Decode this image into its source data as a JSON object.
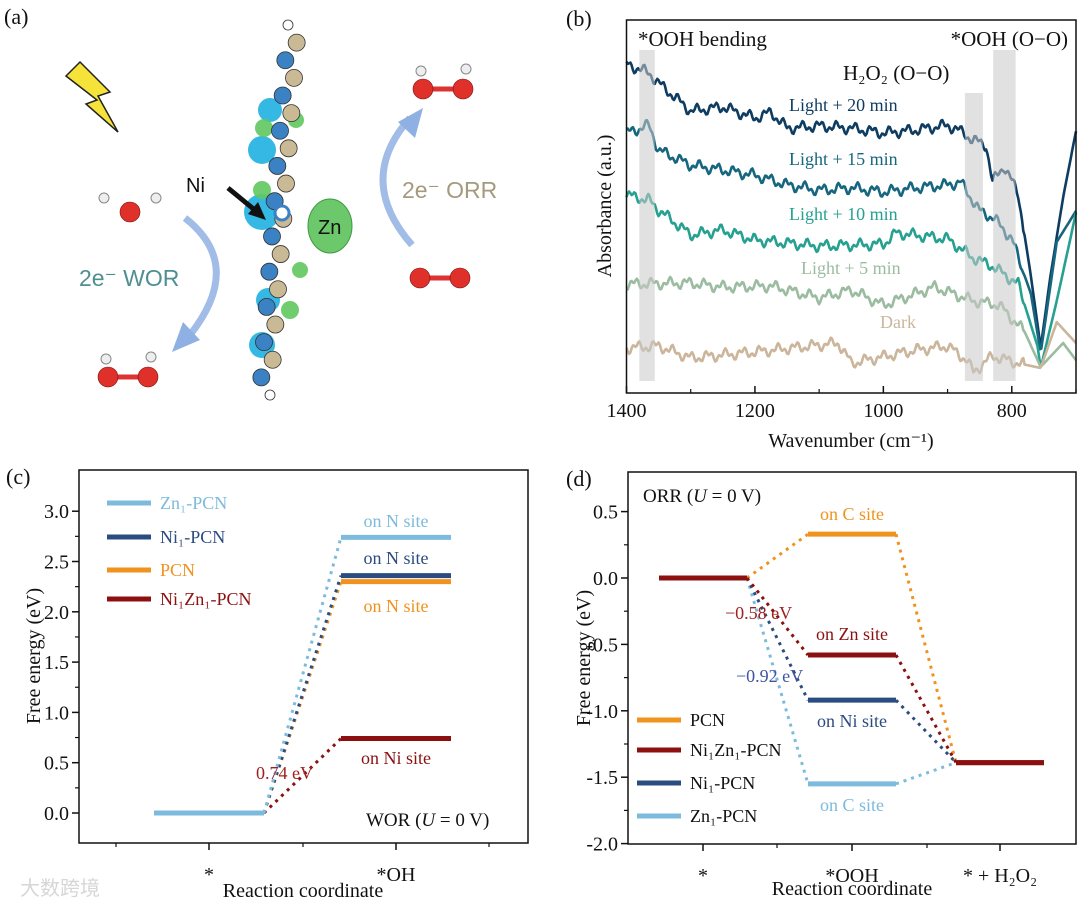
{
  "panels": {
    "a": "(a)",
    "b": "(b)",
    "c": "(c)",
    "d": "(d)"
  },
  "illustration": {
    "ni_label": "Ni",
    "zn_label": "Zn",
    "wor_label": "2e⁻ WOR",
    "orr_label": "2e⁻ ORR",
    "colors": {
      "wor": "#4f8f91",
      "orr": "#a59a7e",
      "arrow": "#8fb0e3"
    }
  },
  "watermark": "大数跨境",
  "chart_data": [
    {
      "id": "b",
      "type": "line",
      "title": "",
      "xlabel": "Wavenumber (cm⁻¹)",
      "ylabel": "Absorbance (a.u.)",
      "xlim": [
        1400,
        700
      ],
      "ylim": [
        0,
        10
      ],
      "xticks": [
        1400,
        1200,
        1000,
        800
      ],
      "xticks_minor": [
        1300,
        1100,
        900,
        700
      ],
      "grid": false,
      "bands": [
        {
          "label": "*OOH bending",
          "range": [
            1380,
            1356
          ]
        },
        {
          "label": "H₂O₂ (O−O)",
          "range": [
            873,
            845
          ]
        },
        {
          "label": "*OOH (O−O)",
          "range": [
            829,
            794
          ]
        }
      ],
      "series": [
        {
          "name": "Light + 20 min",
          "color": "#0f3d62",
          "points": [
            [
              1400,
              8.82
            ],
            [
              1365,
              8.58
            ],
            [
              1350,
              8.31
            ],
            [
              1300,
              7.56
            ],
            [
              1250,
              7.67
            ],
            [
              1200,
              7.37
            ],
            [
              1175,
              7.53
            ],
            [
              1150,
              7.1
            ],
            [
              1100,
              7.16
            ],
            [
              1050,
              7.1
            ],
            [
              1000,
              6.97
            ],
            [
              950,
              7.05
            ],
            [
              900,
              7.18
            ],
            [
              880,
              7.02
            ],
            [
              860,
              6.78
            ],
            [
              840,
              6.65
            ],
            [
              830,
              5.66
            ],
            [
              812,
              6.09
            ],
            [
              790,
              5.34
            ],
            [
              770,
              3.11
            ],
            [
              755,
              1.21
            ],
            [
              740,
              3.11
            ],
            [
              720,
              5.25
            ],
            [
              700,
              7.02
            ]
          ]
        },
        {
          "name": "Light + 15 min",
          "color": "#17667f",
          "points": [
            [
              1400,
              6.97
            ],
            [
              1365,
              7.18
            ],
            [
              1350,
              6.51
            ],
            [
              1300,
              6.11
            ],
            [
              1250,
              5.98
            ],
            [
              1200,
              5.84
            ],
            [
              1150,
              5.58
            ],
            [
              1100,
              5.44
            ],
            [
              1050,
              5.5
            ],
            [
              1000,
              5.39
            ],
            [
              950,
              5.5
            ],
            [
              900,
              5.58
            ],
            [
              880,
              5.66
            ],
            [
              850,
              4.88
            ],
            [
              828,
              4.69
            ],
            [
              800,
              4.13
            ],
            [
              770,
              2.65
            ],
            [
              755,
              1.07
            ],
            [
              730,
              4.05
            ],
            [
              700,
              4.88
            ]
          ]
        },
        {
          "name": "Light + 10 min",
          "color": "#26a191",
          "points": [
            [
              1400,
              5.31
            ],
            [
              1365,
              5.17
            ],
            [
              1350,
              4.91
            ],
            [
              1300,
              4.24
            ],
            [
              1250,
              4.37
            ],
            [
              1200,
              4.1
            ],
            [
              1100,
              3.94
            ],
            [
              1000,
              3.99
            ],
            [
              980,
              4.29
            ],
            [
              900,
              4.13
            ],
            [
              860,
              3.62
            ],
            [
              830,
              3.4
            ],
            [
              790,
              2.92
            ],
            [
              760,
              1.26
            ],
            [
              755,
              0.67
            ],
            [
              730,
              2.47
            ],
            [
              700,
              4.83
            ]
          ]
        },
        {
          "name": "Light + 5 min",
          "color": "#9bbca0",
          "points": [
            [
              1400,
              2.92
            ],
            [
              1300,
              2.95
            ],
            [
              1250,
              2.84
            ],
            [
              1175,
              2.87
            ],
            [
              1100,
              2.55
            ],
            [
              1050,
              2.76
            ],
            [
              1000,
              2.36
            ],
            [
              920,
              2.84
            ],
            [
              860,
              2.47
            ],
            [
              820,
              2.36
            ],
            [
              780,
              1.64
            ],
            [
              755,
              0.7
            ],
            [
              720,
              1.34
            ],
            [
              700,
              0.88
            ]
          ]
        },
        {
          "name": "Dark",
          "color": "#cbb59b",
          "points": [
            [
              1400,
              1.21
            ],
            [
              1350,
              1.26
            ],
            [
              1300,
              0.94
            ],
            [
              1200,
              1.1
            ],
            [
              1070,
              1.34
            ],
            [
              1050,
              0.8
            ],
            [
              950,
              1.15
            ],
            [
              900,
              1.26
            ],
            [
              870,
              0.88
            ],
            [
              860,
              0.56
            ],
            [
              830,
              0.99
            ],
            [
              790,
              0.8
            ],
            [
              755,
              0.67
            ],
            [
              730,
              1.9
            ],
            [
              700,
              1.34
            ]
          ]
        }
      ]
    },
    {
      "id": "c",
      "type": "energy-diagram",
      "xlabel": "Reaction coordinate",
      "ylabel": "Free energy (eV)",
      "categories": [
        "*",
        "*OH"
      ],
      "ylim": [
        -0.3,
        3.41
      ],
      "yticks": [
        "0.0",
        "0.5",
        "1.0",
        "1.5",
        "2.0",
        "2.5",
        "3.0"
      ],
      "legend_position": "top-left",
      "annotation": {
        "prefix": "WOR (",
        "italic": "U",
        "suffix": " = 0 V)"
      },
      "delta_label": "0.74 eV",
      "series": [
        {
          "name": "Zn₁-PCN",
          "color": "#7dbbdc",
          "values": [
            0,
            2.74
          ],
          "site": "on N site"
        },
        {
          "name": "Ni₁-PCN",
          "color": "#2b4c80",
          "values": [
            0,
            2.36
          ],
          "site": "on N site"
        },
        {
          "name": "PCN",
          "color": "#f0921e",
          "values": [
            0,
            2.3
          ],
          "site": "on N site"
        },
        {
          "name": "Ni₁Zn₁-PCN",
          "color": "#8c1010",
          "values": [
            0,
            0.74
          ],
          "site": "on Ni site"
        }
      ]
    },
    {
      "id": "d",
      "type": "energy-diagram",
      "xlabel": "Reaction coordinate",
      "ylabel": "Free energy (eV)",
      "categories": [
        "*",
        "*OOH",
        "* + H₂O₂"
      ],
      "ylim": [
        -2.0,
        0.8
      ],
      "yticks": [
        "-2.0",
        "-1.5",
        "-1.0",
        "-0.5",
        "0.0",
        "0.5"
      ],
      "legend_position": "bottom-left",
      "annotation": {
        "prefix": "ORR (",
        "italic": "U",
        "suffix": " = 0 V)"
      },
      "delta_labels": [
        {
          "text": "−0.58 eV",
          "color": "#a02020"
        },
        {
          "text": "−0.92 eV",
          "color": "#3f55a0"
        }
      ],
      "series": [
        {
          "name": "PCN",
          "color": "#f0921e",
          "values": [
            0,
            0.33,
            -1.39
          ],
          "site": "on C site"
        },
        {
          "name": "Ni₁Zn₁-PCN",
          "color": "#8c1010",
          "values": [
            0,
            -0.58,
            -1.39
          ],
          "site": "on Zn site"
        },
        {
          "name": "Ni₁-PCN",
          "color": "#2b4c80",
          "values": [
            0,
            -0.92,
            -1.39
          ],
          "site": "on Ni site"
        },
        {
          "name": "Zn₁-PCN",
          "color": "#7dbbdc",
          "values": [
            0,
            -1.55,
            -1.39
          ],
          "site": "on C site"
        }
      ]
    }
  ]
}
